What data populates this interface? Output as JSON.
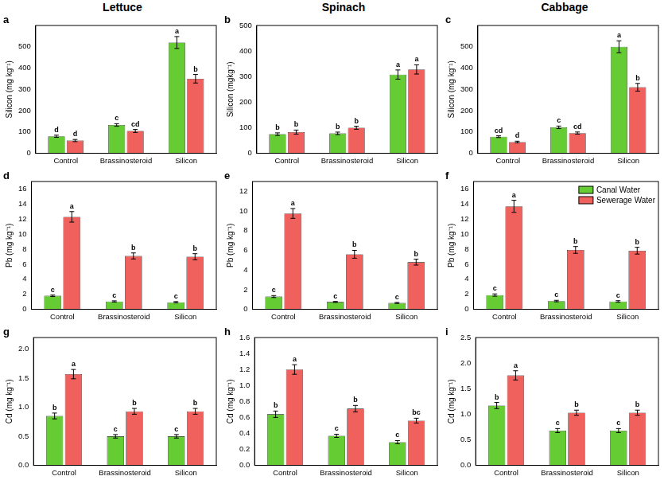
{
  "chart_data": [
    {
      "panel": "a",
      "title": "Lettuce",
      "type": "bar",
      "y_label": "Silicon (mg kg⁻¹)",
      "grid": false,
      "categories": [
        "Control",
        "Brassinosteroid",
        "Silicon"
      ],
      "series": [
        {
          "name": "Canal Water",
          "color": "#66cc33",
          "values": [
            80,
            133,
            520
          ],
          "errors": [
            5,
            6,
            28
          ],
          "letters": [
            "d",
            "c",
            "a"
          ]
        },
        {
          "name": "Sewerage Water",
          "color": "#f0605d",
          "values": [
            60,
            105,
            350
          ],
          "errors": [
            5,
            7,
            20
          ],
          "letters": [
            "d",
            "cd",
            "b"
          ]
        }
      ],
      "ylim": [
        0,
        600
      ],
      "yticks": [
        0,
        100,
        200,
        300,
        400,
        500
      ]
    },
    {
      "panel": "b",
      "title": "Spinach",
      "type": "bar",
      "y_label": "Silicon (mgkg⁻¹)",
      "grid": false,
      "categories": [
        "Control",
        "Brassinosteroid",
        "Silicon"
      ],
      "series": [
        {
          "name": "Canal Water",
          "color": "#66cc33",
          "values": [
            75,
            78,
            308
          ],
          "errors": [
            5,
            5,
            18
          ],
          "letters": [
            "b",
            "b",
            "a"
          ]
        },
        {
          "name": "Sewerage Water",
          "color": "#f0605d",
          "values": [
            83,
            100,
            328
          ],
          "errors": [
            8,
            6,
            18
          ],
          "letters": [
            "b",
            "b",
            "a"
          ]
        }
      ],
      "ylim": [
        0,
        500
      ],
      "yticks": [
        0,
        100,
        200,
        300,
        400,
        500
      ]
    },
    {
      "panel": "c",
      "title": "Cabbage",
      "type": "bar",
      "y_label": "Silicon (mg kg⁻¹)",
      "grid": false,
      "categories": [
        "Control",
        "Brassinosteroid",
        "Silicon"
      ],
      "series": [
        {
          "name": "Canal Water",
          "color": "#66cc33",
          "values": [
            78,
            122,
            500
          ],
          "errors": [
            4,
            6,
            28
          ],
          "letters": [
            "cd",
            "c",
            "a"
          ]
        },
        {
          "name": "Sewerage Water",
          "color": "#f0605d",
          "values": [
            53,
            95,
            310
          ],
          "errors": [
            4,
            5,
            18
          ],
          "letters": [
            "d",
            "cd",
            "b"
          ]
        }
      ],
      "ylim": [
        0,
        600
      ],
      "yticks": [
        0,
        100,
        200,
        300,
        400,
        500
      ]
    },
    {
      "panel": "d",
      "type": "bar",
      "y_label": "Pb (mg kg⁻¹)",
      "grid": false,
      "categories": [
        "Control",
        "Brassinosteroid",
        "Silicon"
      ],
      "series": [
        {
          "name": "Canal Water",
          "color": "#66cc33",
          "values": [
            1.8,
            1.05,
            0.95
          ],
          "errors": [
            0.1,
            0.08,
            0.08
          ],
          "letters": [
            "c",
            "c",
            "c"
          ]
        },
        {
          "name": "Sewerage Water",
          "color": "#f0605d",
          "values": [
            12.3,
            7.1,
            7.0
          ],
          "errors": [
            0.7,
            0.4,
            0.4
          ],
          "letters": [
            "a",
            "b",
            "b"
          ]
        }
      ],
      "ylim": [
        0,
        17
      ],
      "yticks": [
        0,
        2,
        4,
        6,
        8,
        10,
        12,
        14,
        16
      ]
    },
    {
      "panel": "e",
      "type": "bar",
      "y_label": "Pb (mg kg⁻¹)",
      "grid": false,
      "categories": [
        "Control",
        "Brassinosteroid",
        "Silicon"
      ],
      "series": [
        {
          "name": "Canal Water",
          "color": "#66cc33",
          "values": [
            1.3,
            0.75,
            0.65
          ],
          "errors": [
            0.1,
            0.05,
            0.05
          ],
          "letters": [
            "c",
            "c",
            "c"
          ]
        },
        {
          "name": "Sewerage Water",
          "color": "#f0605d",
          "values": [
            9.75,
            5.6,
            4.8
          ],
          "errors": [
            0.5,
            0.4,
            0.3
          ],
          "letters": [
            "a",
            "b",
            "b"
          ]
        }
      ],
      "ylim": [
        0,
        13
      ],
      "yticks": [
        0,
        2,
        4,
        6,
        8,
        10,
        12
      ]
    },
    {
      "panel": "f",
      "type": "bar",
      "y_label": "Pb (mg kg⁻¹)",
      "grid": false,
      "legend": "upper right",
      "categories": [
        "Control",
        "Brassinosteroid",
        "Silicon"
      ],
      "series": [
        {
          "name": "Canal Water",
          "color": "#66cc33",
          "values": [
            1.9,
            1.1,
            1.05
          ],
          "errors": [
            0.15,
            0.1,
            0.1
          ],
          "letters": [
            "c",
            "c",
            "c"
          ]
        },
        {
          "name": "Sewerage Water",
          "color": "#f0605d",
          "values": [
            13.7,
            7.9,
            7.8
          ],
          "errors": [
            0.8,
            0.45,
            0.45
          ],
          "letters": [
            "a",
            "b",
            "b"
          ]
        }
      ],
      "ylim": [
        0,
        17
      ],
      "yticks": [
        0,
        2,
        4,
        6,
        8,
        10,
        12,
        14,
        16
      ]
    },
    {
      "panel": "g",
      "type": "bar",
      "y_label": "Cd (mg kg⁻¹)",
      "grid": false,
      "categories": [
        "Control",
        "Brassinosteroid",
        "Silicon"
      ],
      "series": [
        {
          "name": "Canal Water",
          "color": "#66cc33",
          "values": [
            0.85,
            0.5,
            0.5
          ],
          "errors": [
            0.05,
            0.03,
            0.03
          ],
          "letters": [
            "b",
            "c",
            "c"
          ]
        },
        {
          "name": "Sewerage Water",
          "color": "#f0605d",
          "values": [
            1.57,
            0.93,
            0.93
          ],
          "errors": [
            0.08,
            0.05,
            0.05
          ],
          "letters": [
            "a",
            "b",
            "b"
          ]
        }
      ],
      "ylim": [
        0,
        2.2
      ],
      "yticks": [
        {
          "value": 0,
          "label": "0.0"
        },
        0.5,
        {
          "value": 1,
          "label": "1.0"
        },
        1.5,
        {
          "value": 2,
          "label": "2.0"
        }
      ]
    },
    {
      "panel": "h",
      "type": "bar",
      "y_label": "Cd (mg kg⁻¹)",
      "grid": false,
      "categories": [
        "Control",
        "Brassinosteroid",
        "Silicon"
      ],
      "series": [
        {
          "name": "Canal Water",
          "color": "#66cc33",
          "values": [
            0.64,
            0.37,
            0.29
          ],
          "errors": [
            0.04,
            0.02,
            0.02
          ],
          "letters": [
            "b",
            "c",
            "c"
          ]
        },
        {
          "name": "Sewerage Water",
          "color": "#f0605d",
          "values": [
            1.2,
            0.71,
            0.56
          ],
          "errors": [
            0.06,
            0.04,
            0.03
          ],
          "letters": [
            "a",
            "b",
            "bc"
          ]
        }
      ],
      "ylim": [
        0,
        1.6
      ],
      "yticks": [
        {
          "value": 0,
          "label": "0.0"
        },
        0.2,
        0.4,
        0.6,
        0.8,
        {
          "value": 1,
          "label": "1.0"
        },
        1.2,
        1.4,
        1.6
      ]
    },
    {
      "panel": "i",
      "type": "bar",
      "y_label": "Cd (mg kg⁻¹)",
      "grid": false,
      "categories": [
        "Control",
        "Brassinosteroid",
        "Silicon"
      ],
      "series": [
        {
          "name": "Canal Water",
          "color": "#66cc33",
          "values": [
            1.17,
            0.68,
            0.68
          ],
          "errors": [
            0.06,
            0.04,
            0.04
          ],
          "letters": [
            "b",
            "c",
            "c"
          ]
        },
        {
          "name": "Sewerage Water",
          "color": "#f0605d",
          "values": [
            1.76,
            1.03,
            1.03
          ],
          "errors": [
            0.09,
            0.05,
            0.05
          ],
          "letters": [
            "a",
            "b",
            "b"
          ]
        }
      ],
      "ylim": [
        0,
        2.5
      ],
      "yticks": [
        {
          "value": 0,
          "label": "0.0"
        },
        0.5,
        {
          "value": 1,
          "label": "1.0"
        },
        1.5,
        {
          "value": 2,
          "label": "2.0"
        },
        2.5
      ]
    }
  ]
}
